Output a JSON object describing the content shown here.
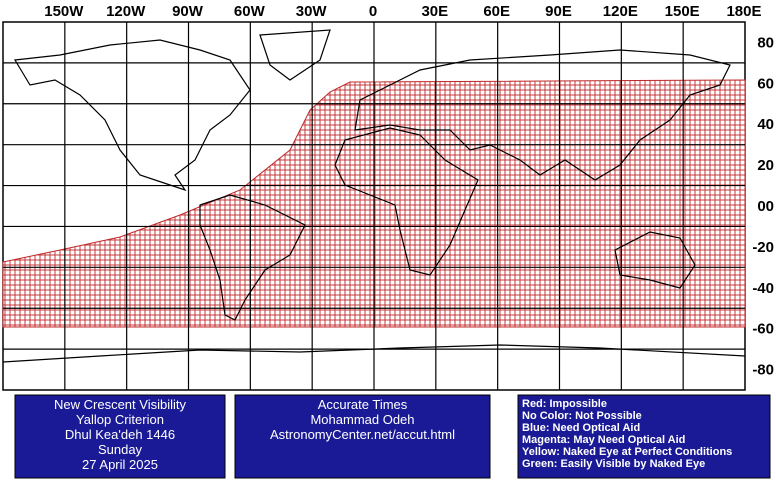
{
  "map": {
    "longitude_labels": [
      "150W",
      "120W",
      "90W",
      "60W",
      "30W",
      "0",
      "30E",
      "60E",
      "90E",
      "120E",
      "150E",
      "180E"
    ],
    "latitude_labels": [
      "80",
      "60",
      "40",
      "20",
      "00",
      "-20",
      "-40",
      "-60",
      "-80"
    ]
  },
  "info_boxes": [
    {
      "lines": [
        "New Crescent Visibility",
        "Yallop Criterion",
        "Dhul Kea'deh 1446",
        "Sunday",
        "27 April 2025"
      ]
    },
    {
      "lines": [
        "Accurate Times",
        "Mohammad Odeh",
        "AstronomyCenter.net/accut.html"
      ]
    },
    {
      "lines": [
        "Red: Impossible",
        "No Color: Not Possible",
        "Blue: Need Optical Aid",
        "Magenta: May Need Optical Aid",
        "Yellow: Naked Eye at Perfect Conditions",
        "Green: Easily Visible by Naked Eye"
      ]
    }
  ]
}
